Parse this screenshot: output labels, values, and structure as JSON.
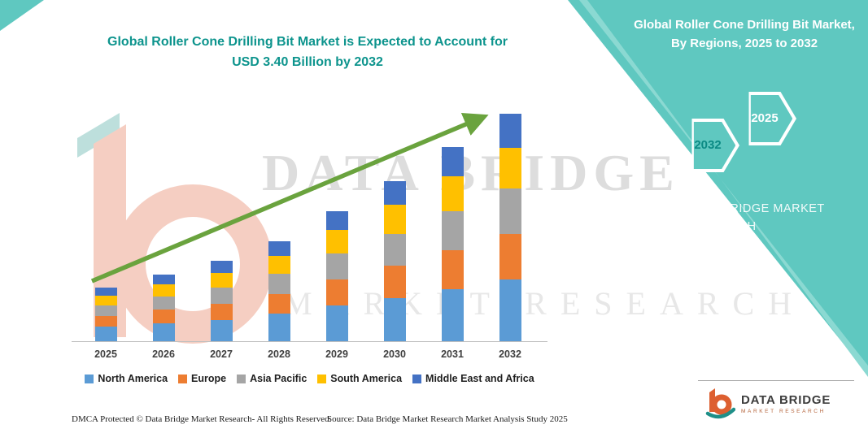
{
  "chart": {
    "title_line1": "Global Roller Cone Drilling Bit Market is Expected to Account for",
    "title_line2": "USD 3.40  Billion by 2032"
  },
  "side_panel": {
    "title": "Global Roller Cone Drilling Bit Market, By Regions, 2025 to 2032",
    "hexagons": {
      "back": "2032",
      "front": "2025"
    },
    "brand_text": "DATA BRIDGE MARKET RESEARCH"
  },
  "watermark": {
    "line1": "DATA BRIDGE",
    "line2": "MARKET RESEARCH"
  },
  "footer": {
    "dmca": "DMCA Protected © Data Bridge Market Research-  All Rights Reserved.",
    "source": "Source: Data Bridge Market Research  Market Analysis Study 2025"
  },
  "logo": {
    "name": "DATA BRIDGE",
    "subtext": "MARKET RESEARCH"
  },
  "chart_data": {
    "type": "bar",
    "stacked": true,
    "title": "Global Roller Cone Drilling Bit Market is Expected to Account for USD 3.40 Billion by 2032",
    "unit": "USD Billion",
    "categories": [
      "2025",
      "2026",
      "2027",
      "2028",
      "2029",
      "2030",
      "2031",
      "2032"
    ],
    "series": [
      {
        "name": "North America",
        "color": "#5B9BD5",
        "values": [
          0.22,
          0.27,
          0.32,
          0.41,
          0.53,
          0.65,
          0.78,
          0.92
        ]
      },
      {
        "name": "Europe",
        "color": "#ED7D31",
        "values": [
          0.16,
          0.2,
          0.24,
          0.3,
          0.39,
          0.48,
          0.58,
          0.68
        ]
      },
      {
        "name": "Asia Pacific",
        "color": "#A5A5A5",
        "values": [
          0.16,
          0.2,
          0.24,
          0.3,
          0.39,
          0.48,
          0.58,
          0.68
        ]
      },
      {
        "name": "South America",
        "color": "#FFC000",
        "values": [
          0.14,
          0.18,
          0.22,
          0.27,
          0.35,
          0.43,
          0.52,
          0.61
        ]
      },
      {
        "name": "Middle East and Africa",
        "color": "#4472C4",
        "values": [
          0.12,
          0.15,
          0.18,
          0.22,
          0.29,
          0.36,
          0.44,
          0.51
        ]
      }
    ],
    "totals": [
      0.8,
      1.0,
      1.2,
      1.5,
      1.95,
      2.4,
      2.9,
      3.4
    ],
    "ylim": [
      0,
      3.6
    ],
    "grid": false,
    "y_axis_visible": false,
    "legend_position": "bottom",
    "annotations": [
      "green upward trend arrow across bars"
    ],
    "trend_arrow_color": "#6aa33e"
  }
}
